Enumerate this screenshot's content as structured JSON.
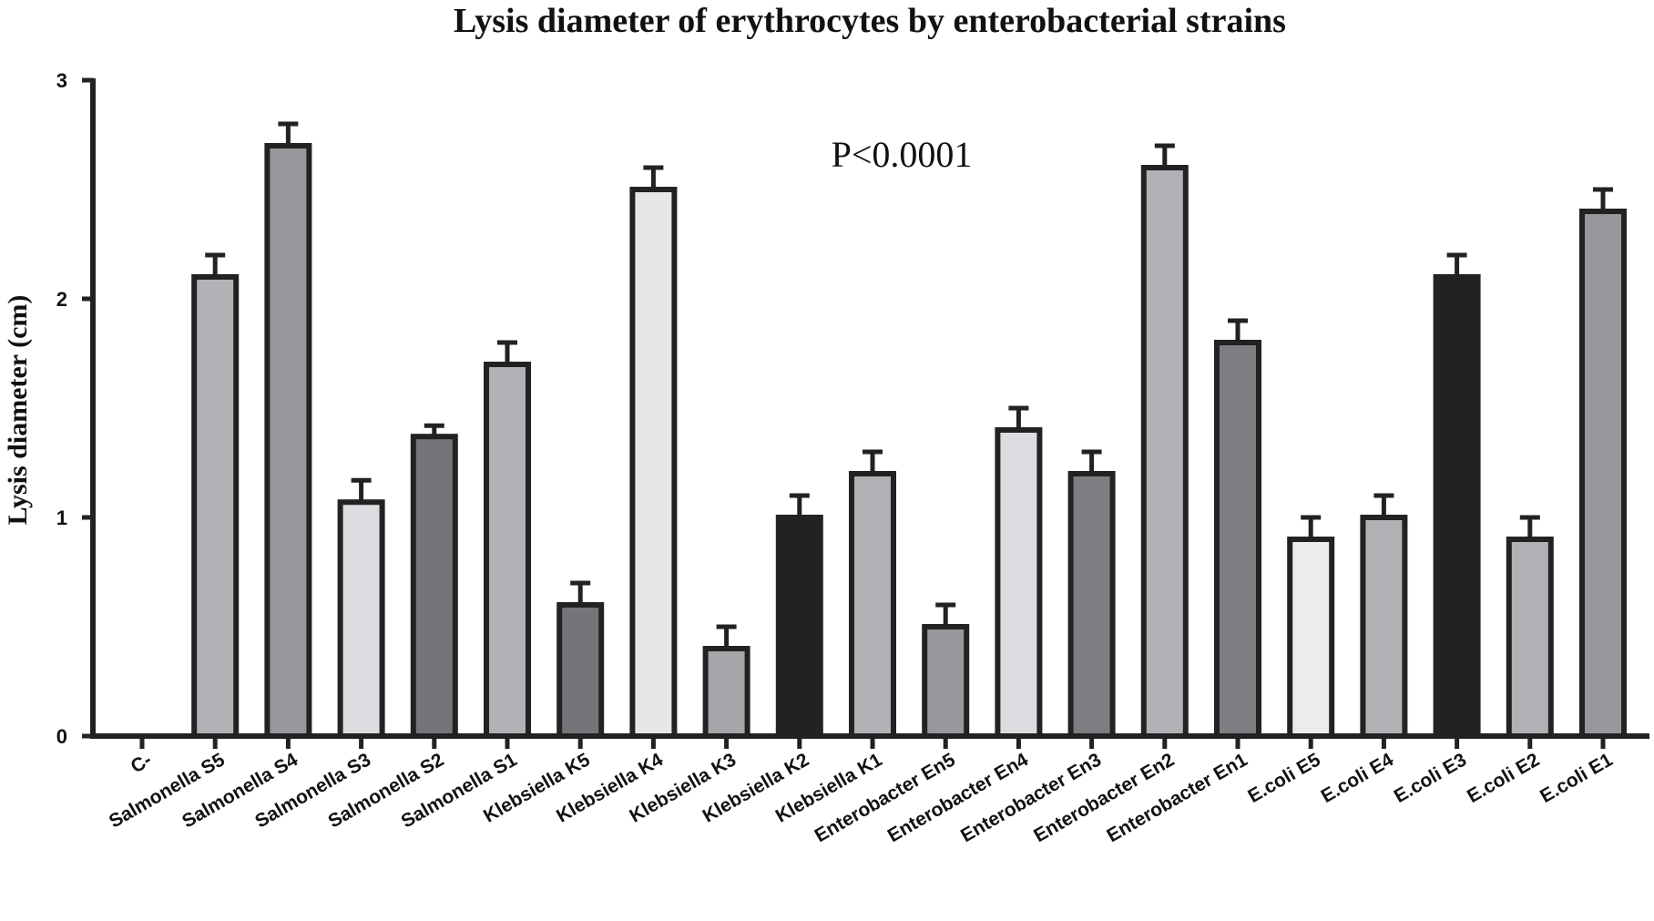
{
  "chart_data": {
    "type": "bar",
    "title": "Lysis diameter of erythrocytes by enterobacterial strains",
    "ylabel": "Lysis diameter (cm)",
    "xlabel": "",
    "ylim": [
      0,
      3
    ],
    "yticks": [
      "0",
      "1",
      "2",
      "3"
    ],
    "grid": false,
    "annotation": "P<0.0001",
    "categories": [
      "C-",
      "Salmonella S5",
      "Salmonella S4",
      "Salmonella S3",
      "Salmonella S2",
      "Salmonella S1",
      "Klebsiella K5",
      "Klebsiella K4",
      "Klebsiella K3",
      "Klebsiella K2",
      "Klebsiella K1",
      "Enterobacter En5",
      "Enterobacter En4",
      "Enterobacter En3",
      "Enterobacter En2",
      "Enterobacter En1",
      "E.coli E5",
      "E.coli E4",
      "E.coli E3",
      "E.coli E2",
      "E.coli E1"
    ],
    "values": [
      0,
      2.1,
      2.7,
      1.07,
      1.37,
      1.7,
      0.6,
      2.5,
      0.4,
      1.0,
      1.2,
      0.5,
      1.4,
      1.2,
      2.6,
      1.8,
      0.9,
      1.0,
      2.1,
      0.9,
      2.4
    ],
    "errors": [
      0,
      0.1,
      0.1,
      0.1,
      0.05,
      0.1,
      0.1,
      0.1,
      0.1,
      0.1,
      0.1,
      0.1,
      0.1,
      0.1,
      0.1,
      0.1,
      0.1,
      0.1,
      0.1,
      0.1,
      0.1
    ],
    "colors": [
      "#ffffff",
      "#b0b2b6",
      "#96989c",
      "#dcdde0",
      "#737579",
      "#b0b2b6",
      "#737579",
      "#e6e7e9",
      "#a4a6aa",
      "#222222",
      "#b0b2b6",
      "#96989c",
      "#dcdde0",
      "#7c7e82",
      "#b0b2b6",
      "#7c7e82",
      "#ececee",
      "#b0b2b6",
      "#222222",
      "#b0b2b6",
      "#96989c"
    ]
  }
}
